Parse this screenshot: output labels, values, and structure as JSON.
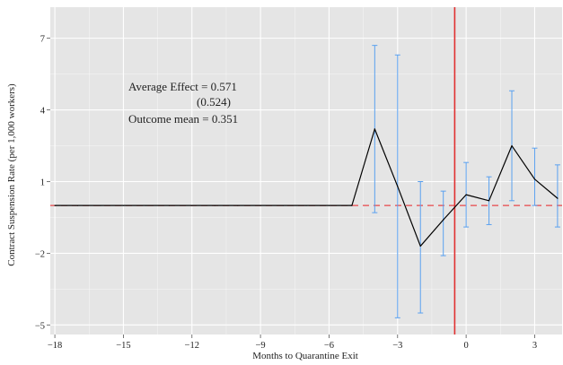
{
  "chart_data": {
    "type": "line",
    "title": "",
    "xlabel": "Months to Quarantine Exit",
    "ylabel": "Contract Suspension Rate (per 1,000 workers)",
    "xlim": [
      -18.2,
      4.2
    ],
    "ylim": [
      -5.4,
      8.3
    ],
    "xticks": [
      -18,
      -15,
      -12,
      -9,
      -6,
      -3,
      0,
      3
    ],
    "yticks": [
      -5,
      -2,
      1,
      4,
      7
    ],
    "xtick_labels": [
      "−18",
      "−15",
      "−12",
      "−9",
      "−6",
      "−3",
      "0",
      "3"
    ],
    "ytick_labels": [
      "−5",
      "−2",
      "1",
      "4",
      "7"
    ],
    "grid": true,
    "series": [
      {
        "color": "#000000",
        "x": [
          -18,
          -17,
          -16,
          -15,
          -14,
          -13,
          -12,
          -11,
          -10,
          -9,
          -8,
          -7,
          -6,
          -5,
          -4,
          -3,
          -2,
          -1,
          0,
          1,
          2,
          3,
          4
        ],
        "y": [
          0,
          0,
          0,
          0,
          0,
          0,
          0,
          0,
          0,
          0,
          0,
          0,
          0,
          0,
          3.2,
          0.8,
          -1.7,
          -0.6,
          0.45,
          0.2,
          2.5,
          1.1,
          0.3
        ],
        "ci_low": [
          null,
          null,
          null,
          null,
          null,
          null,
          null,
          null,
          null,
          null,
          null,
          null,
          null,
          null,
          -0.3,
          -4.7,
          -4.5,
          -2.1,
          -0.9,
          -0.8,
          0.2,
          0,
          -0.9
        ],
        "ci_high": [
          null,
          null,
          null,
          null,
          null,
          null,
          null,
          null,
          null,
          null,
          null,
          null,
          null,
          null,
          6.7,
          6.3,
          1,
          0.6,
          1.8,
          1.2,
          4.8,
          2.4,
          1.7
        ]
      }
    ],
    "reference_lines": [
      {
        "orientation": "horizontal",
        "value": 0,
        "color": "#e8474a",
        "style": "dashed"
      },
      {
        "orientation": "vertical",
        "value": -0.5,
        "color": "#e03030",
        "style": "solid"
      }
    ],
    "errorbar_color": "#5aa1f0",
    "background_color": "#e5e5e5",
    "grid_color": "#ffffff",
    "annotations": {
      "avg_effect": "Average Effect = 0.571",
      "std_error": "(0.524)",
      "outcome_mean": "Outcome mean = 0.351"
    }
  }
}
